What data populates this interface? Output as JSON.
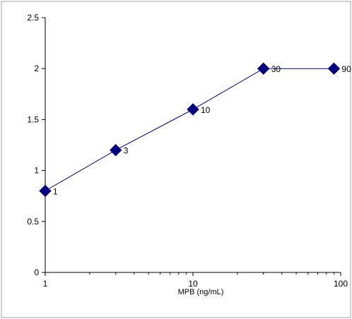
{
  "chart_data": {
    "type": "line",
    "title": "",
    "xlabel": "MPB (ng/mL)",
    "ylabel": "",
    "x_scale": "log",
    "xlim": [
      1,
      100
    ],
    "ylim": [
      0,
      2.5
    ],
    "x_ticks": [
      1,
      10,
      100
    ],
    "x_tick_labels": [
      "1",
      "10",
      "100"
    ],
    "y_ticks": [
      0,
      0.5,
      1,
      1.5,
      2,
      2.5
    ],
    "y_tick_labels": [
      "0",
      "0.5",
      "1",
      "1.5",
      "2",
      "2.5"
    ],
    "grid": false,
    "legend": "none",
    "series": [
      {
        "x": [
          1,
          3,
          10,
          30,
          90
        ],
        "y": [
          0.8,
          1.2,
          1.6,
          2.0,
          2.0
        ],
        "point_labels": [
          "1",
          "3",
          "10",
          "30",
          "90"
        ],
        "color": "#000080",
        "line_color": "#000080",
        "marker": "diamond"
      }
    ]
  }
}
